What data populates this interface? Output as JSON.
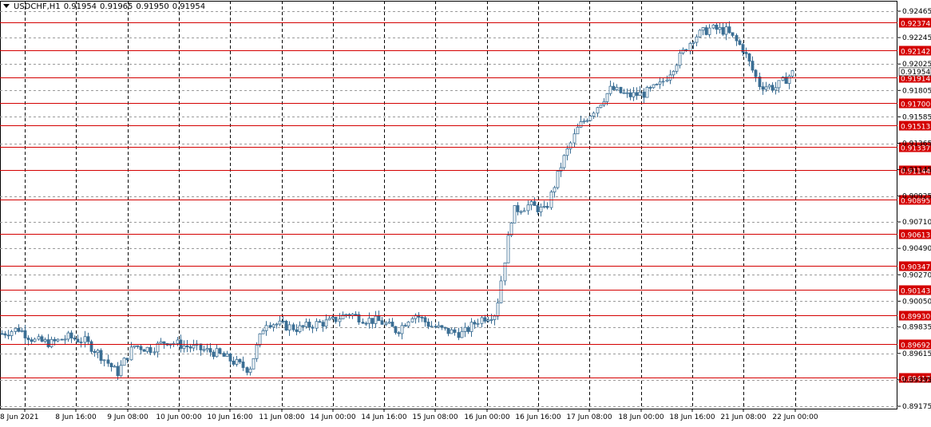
{
  "header": {
    "symbol": "USDCHF,H1",
    "values": [
      "0.91954",
      "0.91965",
      "0.91950",
      "0.91954"
    ]
  },
  "colors": {
    "background": "#ffffff",
    "grid": "#9a9a9a",
    "candle": "#3b6e94",
    "level_line": "#d40000",
    "level_label_bg": "#d40000"
  },
  "chart_data": {
    "type": "candlestick",
    "grid": true,
    "ylim": [
      0.8917,
      0.925
    ],
    "y_ticks": [
      "0.92465",
      "0.92245",
      "0.92025",
      "0.91805",
      "0.91585",
      "0.91365",
      "0.91145",
      "0.90925",
      "0.90710",
      "0.90490",
      "0.90270",
      "0.90050",
      "0.89835",
      "0.89615",
      "0.89395",
      "0.89175"
    ],
    "x_ticks": [
      "8 Jun 2021",
      "8 Jun 16:00",
      "9 Jun 08:00",
      "10 Jun 00:00",
      "10 Jun 16:00",
      "11 Jun 08:00",
      "14 Jun 00:00",
      "14 Jun 16:00",
      "15 Jun 08:00",
      "16 Jun 00:00",
      "16 Jun 16:00",
      "17 Jun 08:00",
      "18 Jun 00:00",
      "18 Jun 16:00",
      "21 Jun 08:00",
      "22 Jun 00:00"
    ],
    "current_price": "0.91954",
    "levels": [
      "0.92374",
      "0.92142",
      "0.91914",
      "0.91700",
      "0.91513",
      "0.91337",
      "0.91144",
      "0.90895",
      "0.90613",
      "0.90347",
      "0.90143",
      "0.89930",
      "0.89692",
      "0.89417"
    ],
    "approx_close_path": [
      0.8978,
      0.8982,
      0.8972,
      0.897,
      0.8975,
      0.8972,
      0.896,
      0.8945,
      0.8968,
      0.8965,
      0.8972,
      0.8968,
      0.8965,
      0.8962,
      0.8955,
      0.8948,
      0.8988,
      0.8985,
      0.8982,
      0.8986,
      0.8988,
      0.8995,
      0.899,
      0.8988,
      0.898,
      0.8995,
      0.8985,
      0.898,
      0.8978,
      0.899,
      0.8995,
      0.908,
      0.9085,
      0.908,
      0.912,
      0.915,
      0.9165,
      0.9182,
      0.9176,
      0.9178,
      0.9185,
      0.9205,
      0.9225,
      0.9232,
      0.923,
      0.9215,
      0.9185,
      0.9183,
      0.9195
    ]
  }
}
